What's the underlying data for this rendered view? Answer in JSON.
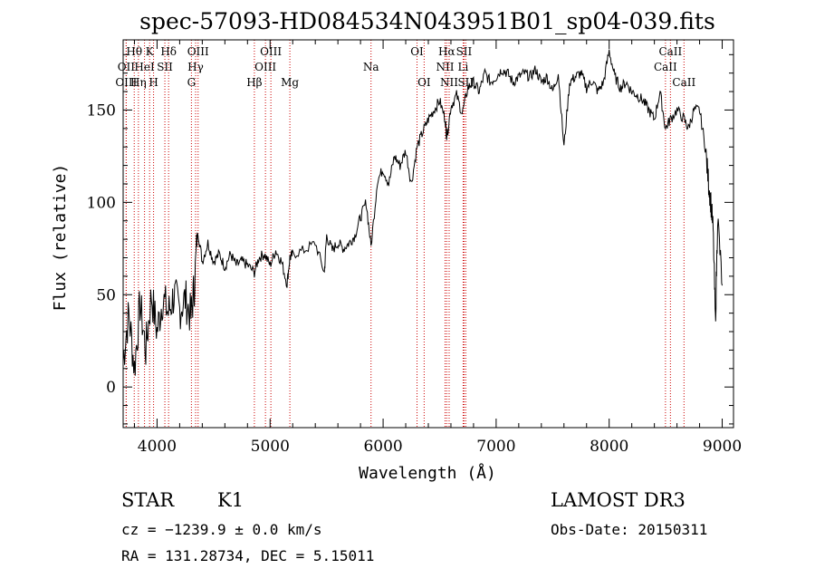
{
  "chart_data": {
    "type": "line",
    "title": "spec-57093-HD084534N043951B01_sp04-039.fits",
    "xlabel": "Wavelength (Å)",
    "ylabel": "Flux (relative)",
    "xlim": [
      3700,
      9100
    ],
    "ylim": [
      -22,
      188
    ],
    "xticks": [
      4000,
      5000,
      6000,
      7000,
      8000,
      9000
    ],
    "yticks": [
      0,
      50,
      100,
      150
    ],
    "series": [
      {
        "name": "flux",
        "x": [
          3700,
          3750,
          3800,
          3850,
          3900,
          3950,
          4000,
          4050,
          4100,
          4150,
          4200,
          4250,
          4300,
          4330,
          4360,
          4400,
          4450,
          4500,
          4550,
          4600,
          4650,
          4700,
          4750,
          4800,
          4861,
          4900,
          4950,
          5000,
          5050,
          5100,
          5150,
          5175,
          5200,
          5300,
          5400,
          5480,
          5500,
          5550,
          5600,
          5650,
          5700,
          5750,
          5800,
          5850,
          5893,
          5950,
          6000,
          6050,
          6100,
          6150,
          6200,
          6250,
          6300,
          6350,
          6400,
          6450,
          6500,
          6550,
          6563,
          6600,
          6650,
          6700,
          6750,
          6800,
          6850,
          6900,
          6950,
          7000,
          7050,
          7100,
          7150,
          7200,
          7250,
          7300,
          7350,
          7400,
          7450,
          7500,
          7550,
          7600,
          7650,
          7700,
          7750,
          7800,
          7850,
          7900,
          7950,
          8000,
          8050,
          8100,
          8150,
          8200,
          8250,
          8300,
          8350,
          8400,
          8450,
          8498,
          8542,
          8600,
          8662,
          8700,
          8750,
          8800,
          8850,
          8880,
          8900,
          8920,
          8940,
          8960,
          9000
        ],
        "y": [
          15,
          40,
          10,
          45,
          20,
          50,
          30,
          48,
          40,
          50,
          42,
          48,
          38,
          55,
          85,
          68,
          78,
          68,
          72,
          65,
          72,
          66,
          68,
          66,
          62,
          70,
          72,
          66,
          74,
          68,
          56,
          70,
          72,
          74,
          78,
          62,
          82,
          74,
          78,
          75,
          78,
          82,
          92,
          100,
          76,
          112,
          118,
          110,
          125,
          120,
          128,
          110,
          130,
          138,
          145,
          150,
          155,
          145,
          135,
          152,
          158,
          148,
          162,
          165,
          160,
          170,
          165,
          168,
          172,
          170,
          165,
          168,
          170,
          168,
          172,
          165,
          168,
          160,
          170,
          130,
          165,
          168,
          170,
          162,
          166,
          160,
          165,
          182,
          168,
          162,
          165,
          160,
          158,
          155,
          150,
          145,
          160,
          140,
          145,
          150,
          145,
          140,
          150,
          150,
          130,
          110,
          100,
          85,
          35,
          92,
          55
        ]
      }
    ],
    "spectral_lines": [
      {
        "name": "Hθ",
        "wavelength": 3798,
        "row": 0
      },
      {
        "name": "OII",
        "wavelength": 3727,
        "row": 1
      },
      {
        "name": "OIII",
        "wavelength": 3727,
        "row": 2
      },
      {
        "name": "K",
        "wavelength": 3934,
        "row": 0
      },
      {
        "name": "HeI",
        "wavelength": 3889,
        "row": 1
      },
      {
        "name": "Hη",
        "wavelength": 3835,
        "row": 2
      },
      {
        "name": "SII",
        "wavelength": 4069,
        "row": 1
      },
      {
        "name": "H",
        "wavelength": 3969,
        "row": 2
      },
      {
        "name": "Hδ",
        "wavelength": 4102,
        "row": 0
      },
      {
        "name": "OIII",
        "wavelength": 4363,
        "row": 0
      },
      {
        "name": "Hγ",
        "wavelength": 4341,
        "row": 1
      },
      {
        "name": "G",
        "wavelength": 4304,
        "row": 2
      },
      {
        "name": "Hβ",
        "wavelength": 4861,
        "row": 2
      },
      {
        "name": "OIII",
        "wavelength": 5007,
        "row": 0
      },
      {
        "name": "OIII",
        "wavelength": 4959,
        "row": 1
      },
      {
        "name": "Mg",
        "wavelength": 5175,
        "row": 2
      },
      {
        "name": "Na",
        "wavelength": 5893,
        "row": 1
      },
      {
        "name": "OI",
        "wavelength": 6300,
        "row": 0
      },
      {
        "name": "OI",
        "wavelength": 6363,
        "row": 2
      },
      {
        "name": "Hα",
        "wavelength": 6563,
        "row": 0
      },
      {
        "name": "SII",
        "wavelength": 6716,
        "row": 0
      },
      {
        "name": "NII",
        "wavelength": 6548,
        "row": 1
      },
      {
        "name": "Li",
        "wavelength": 6708,
        "row": 1
      },
      {
        "name": "NII",
        "wavelength": 6584,
        "row": 2
      },
      {
        "name": "SII",
        "wavelength": 6731,
        "row": 2
      },
      {
        "name": "CaII",
        "wavelength": 8542,
        "row": 0
      },
      {
        "name": "CaII",
        "wavelength": 8498,
        "row": 1
      },
      {
        "name": "CaII",
        "wavelength": 8662,
        "row": 2
      }
    ]
  },
  "info": {
    "class_label": "STAR",
    "subclass_label": "K1",
    "survey_label": "LAMOST DR3",
    "cz_text": "cz = −1239.9 ± 0.0 km/s",
    "obs_date_text": "Obs-Date: 20150311",
    "radec_text": "RA = 131.28734, DEC =   5.15011"
  },
  "colors": {
    "spectrum": "#000000",
    "line_markers": "#cc0000",
    "axes": "#000000"
  }
}
